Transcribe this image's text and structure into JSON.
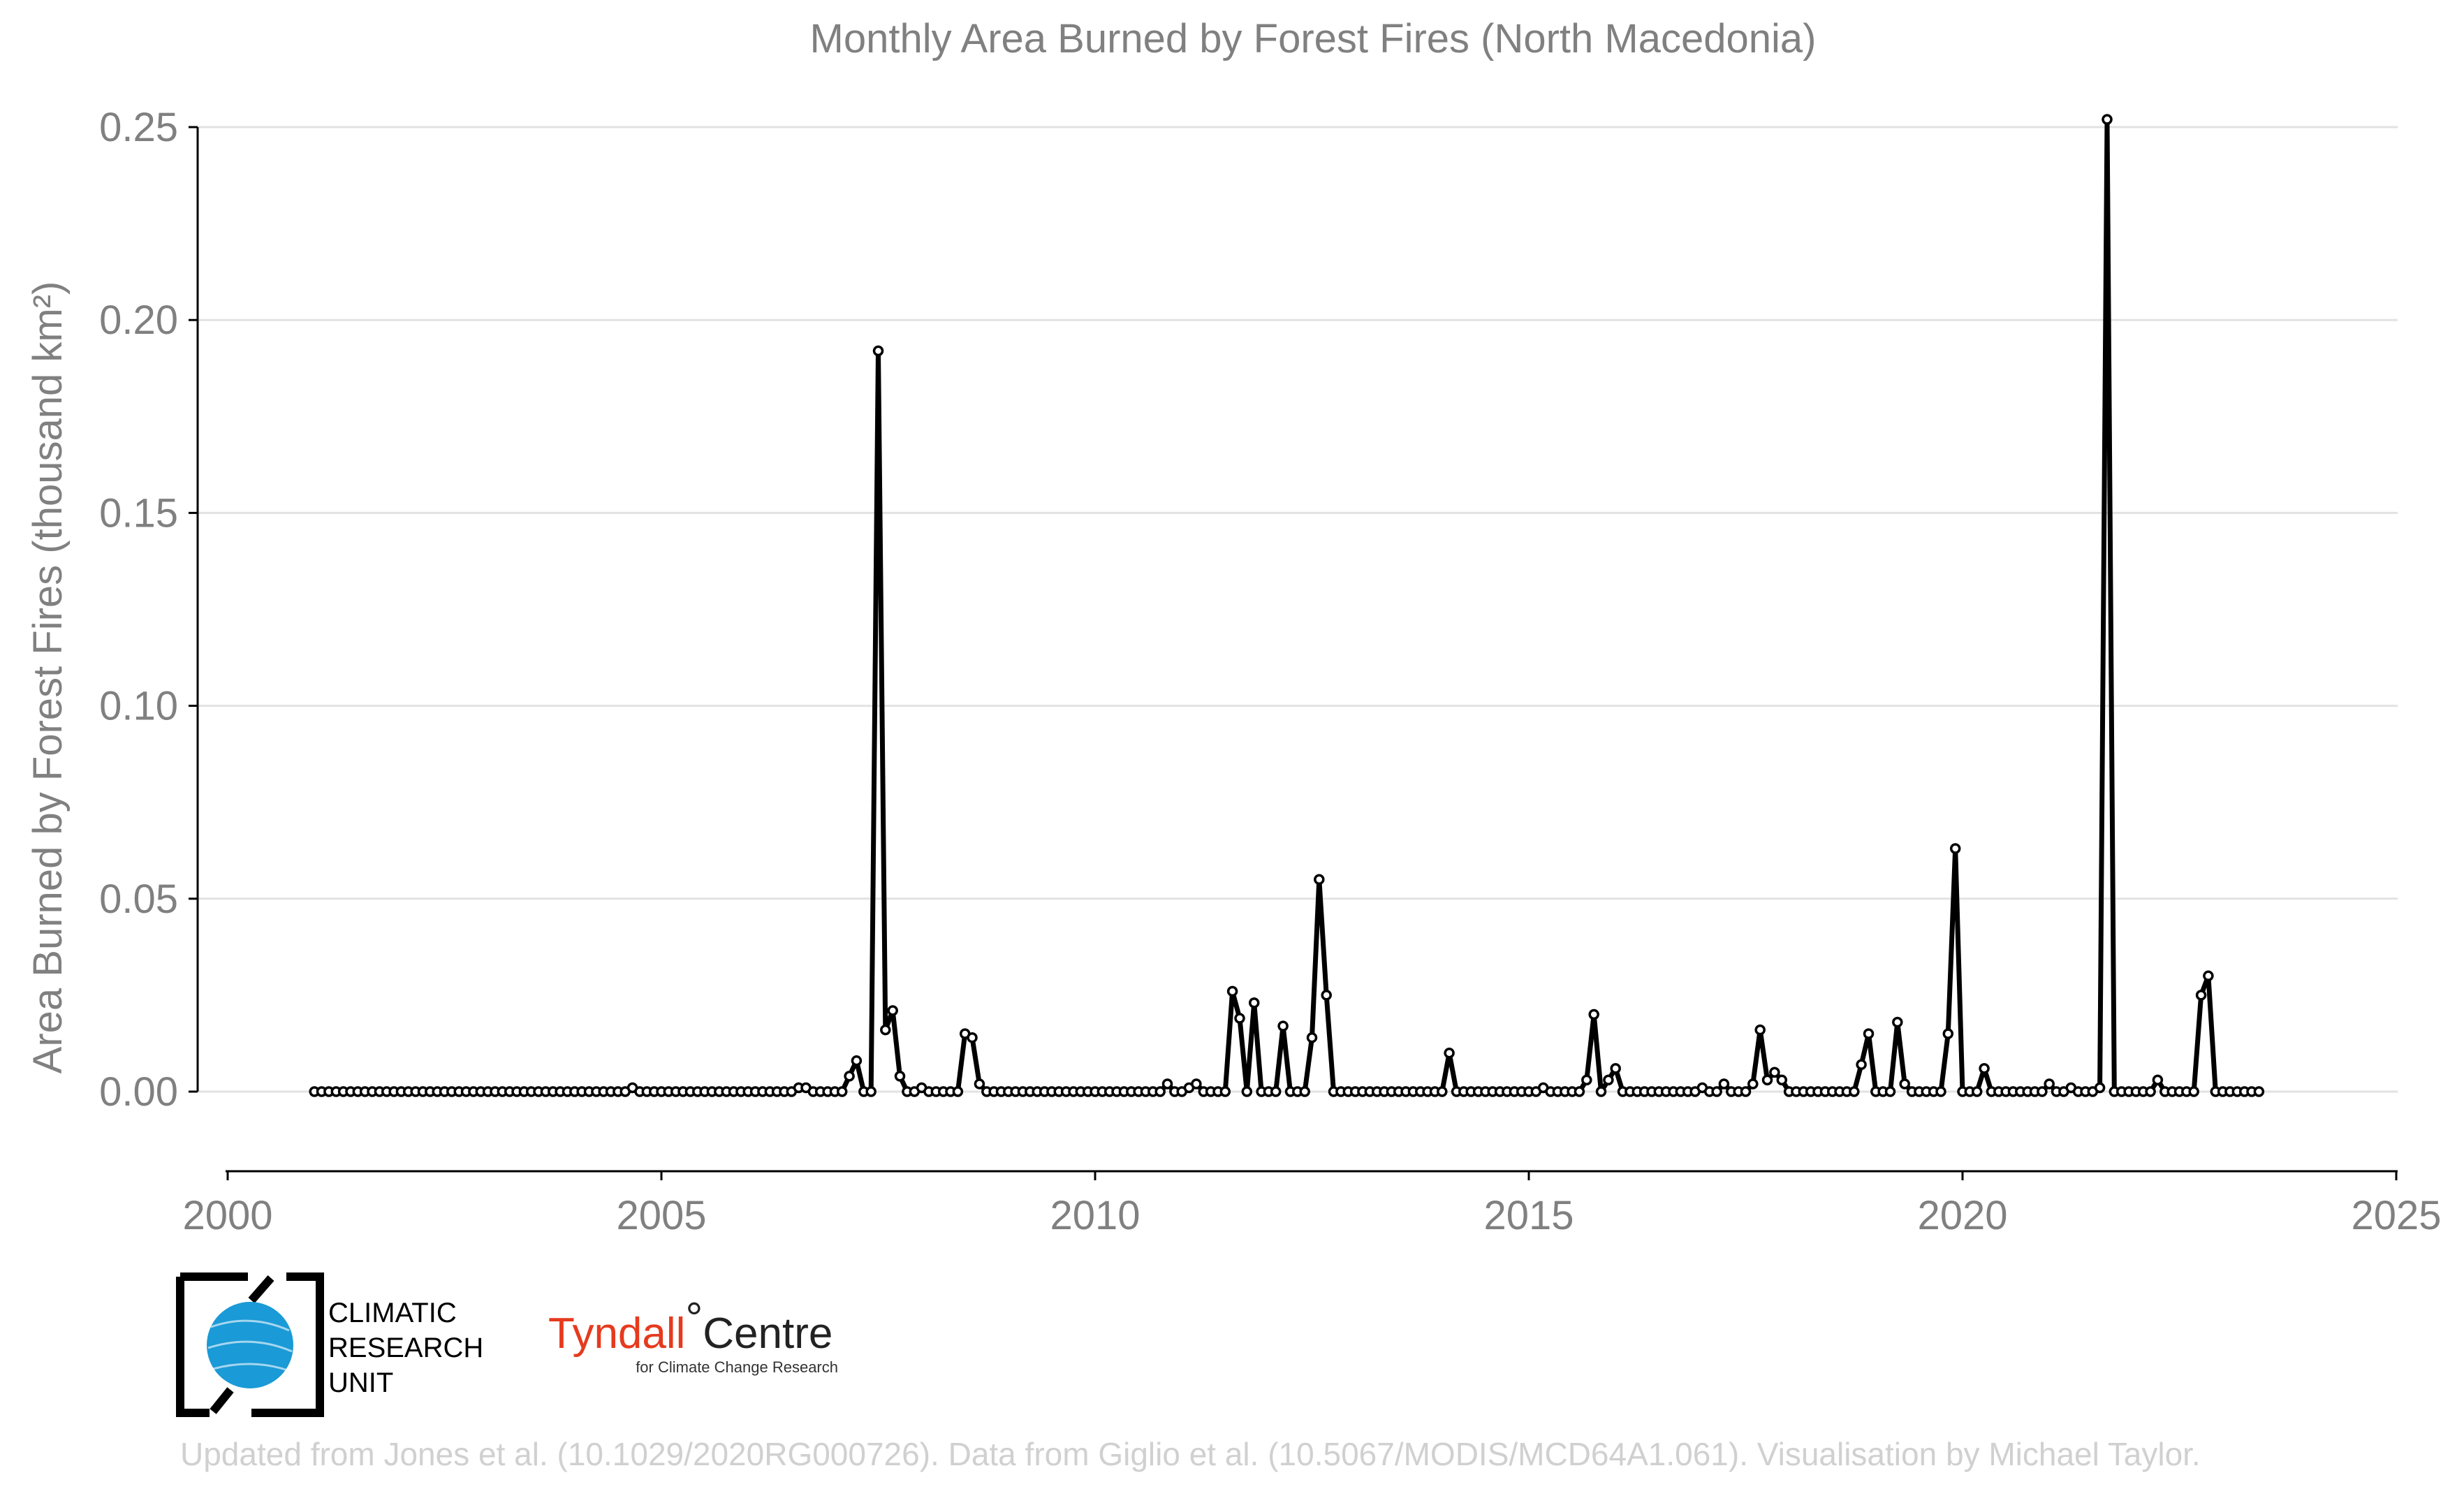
{
  "chart_data": {
    "type": "line",
    "title": "Monthly Area Burned by Forest Fires (North Macedonia)",
    "ylabel": "Area Burned by Forest Fires (thousand km²)",
    "xlabel": "",
    "xlim": [
      2000,
      2025
    ],
    "ylim": [
      -0.02,
      0.25
    ],
    "y_ticks": [
      "0.00",
      "0.05",
      "0.10",
      "0.15",
      "0.20",
      "0.25"
    ],
    "x_ticks": [
      "2000",
      "2005",
      "2010",
      "2015",
      "2020",
      "2025"
    ],
    "grid": "horizontal",
    "start": "2001-01",
    "frequency": "monthly",
    "series": [
      {
        "values": [
          0,
          0,
          0,
          0,
          0,
          0,
          0,
          0,
          0,
          0,
          0,
          0,
          0,
          0,
          0,
          0,
          0,
          0,
          0,
          0,
          0,
          0,
          0,
          0,
          0,
          0,
          0,
          0,
          0,
          0,
          0,
          0,
          0,
          0,
          0,
          0,
          0,
          0,
          0,
          0,
          0,
          0,
          0,
          0,
          0.001,
          0,
          0,
          0,
          0,
          0,
          0,
          0,
          0,
          0,
          0,
          0,
          0,
          0,
          0,
          0,
          0,
          0,
          0,
          0,
          0,
          0,
          0,
          0.001,
          0.001,
          0,
          0,
          0,
          0,
          0,
          0.004,
          0.008,
          0,
          0,
          0.192,
          0.016,
          0.021,
          0.004,
          0,
          0,
          0.001,
          0,
          0,
          0,
          0,
          0,
          0.015,
          0.014,
          0.002,
          0,
          0,
          0,
          0,
          0,
          0,
          0,
          0,
          0,
          0,
          0,
          0,
          0,
          0,
          0,
          0,
          0,
          0,
          0,
          0,
          0,
          0,
          0,
          0,
          0,
          0.002,
          0,
          0,
          0.001,
          0.002,
          0,
          0,
          0,
          0,
          0.026,
          0.019,
          0,
          0.023,
          0,
          0,
          0,
          0.017,
          0,
          0,
          0,
          0.014,
          0.055,
          0.025,
          0,
          0,
          0,
          0,
          0,
          0,
          0,
          0,
          0,
          0,
          0,
          0,
          0,
          0,
          0,
          0,
          0.01,
          0,
          0,
          0,
          0,
          0,
          0,
          0,
          0,
          0,
          0,
          0,
          0,
          0.001,
          0,
          0,
          0,
          0,
          0,
          0.003,
          0.02,
          0,
          0.003,
          0.006,
          0,
          0,
          0,
          0,
          0,
          0,
          0,
          0,
          0,
          0,
          0,
          0.001,
          0,
          0,
          0.002,
          0,
          0,
          0,
          0.002,
          0.016,
          0.003,
          0.005,
          0.003,
          0,
          0,
          0,
          0,
          0,
          0,
          0,
          0,
          0,
          0,
          0.007,
          0.015,
          0,
          0,
          0,
          0.018,
          0.002,
          0,
          0,
          0,
          0,
          0,
          0.015,
          0.063,
          0,
          0,
          0,
          0.006,
          0,
          0,
          0,
          0,
          0,
          0,
          0,
          0,
          0.002,
          0,
          0,
          0.001,
          0,
          0,
          0,
          0.001,
          0.252,
          0,
          0,
          0,
          0,
          0,
          0,
          0.003,
          0,
          0,
          0,
          0,
          0,
          0.025,
          0.03,
          0,
          0,
          0,
          0,
          0,
          0,
          0
        ]
      }
    ]
  },
  "logos": {
    "cru": [
      "CLIMATIC",
      "RESEARCH",
      "UNIT"
    ],
    "tyndall_word": "Tyndall",
    "tyndall_degree": "°",
    "tyndall_centre": "Centre",
    "tyndall_sub": "for Climate Change Research"
  },
  "credits": "Updated from Jones et al. (10.1029/2020RG000726). Data from Giglio et al. (10.5067/MODIS/MCD64A1.061). Visualisation by Michael Taylor.",
  "colors": {
    "line": "#000000",
    "marker_fill": "#ffffff",
    "cru_globe": "#1a9ad6",
    "tyndall_red": "#e63a1e",
    "grid": "#e2e2e2",
    "text": "#808080"
  }
}
